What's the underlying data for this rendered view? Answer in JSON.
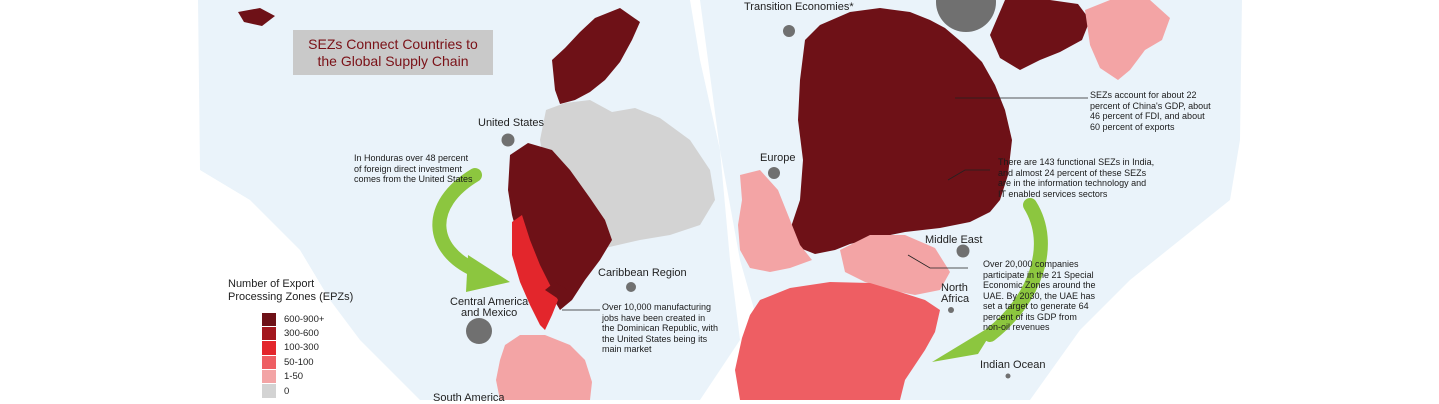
{
  "title": [
    "SEZs Connect Countries to",
    "the Global Supply Chain"
  ],
  "legend": {
    "title": [
      "Number of Export",
      "Processing Zones (EPZs)"
    ],
    "items": [
      {
        "label": "600-900+",
        "color": "#6e1117"
      },
      {
        "label": "300-600",
        "color": "#a3171e"
      },
      {
        "label": "100-300",
        "color": "#e3262c"
      },
      {
        "label": "50-100",
        "color": "#ee5e63"
      },
      {
        "label": "1-50",
        "color": "#f3a4a5"
      },
      {
        "label": "0",
        "color": "#d3d3d3"
      }
    ]
  },
  "regions": {
    "transition": "Transition Economies*",
    "united_states": "United States",
    "europe": "Europe",
    "middle_east": "Middle East",
    "caribbean": "Caribbean Region",
    "central_america": [
      "Central America",
      "and Mexico"
    ],
    "north_africa": [
      "North",
      "Africa"
    ],
    "indian_ocean": "Indian Ocean",
    "south_america": "South America"
  },
  "annotations": {
    "honduras": [
      "In Honduras over 48 percent",
      "of foreign direct investment",
      "comes from the United States"
    ],
    "dominican": [
      "Over 10,000 manufacturing",
      "jobs have been created in",
      "the Dominican Republic, with",
      "the United States being its",
      "main market"
    ],
    "china": [
      "SEZs account for about 22",
      "percent of China's GDP, about",
      "46 percent of FDI, and about",
      "60 percent of exports"
    ],
    "india": [
      "There are 143 functional SEZs in India,",
      "and almost 24 percent of these SEZs",
      "are in the information technology and",
      "IT enabled services sectors"
    ],
    "uae": [
      "Over 20,000 companies",
      "participate in the 21 Special",
      "Economic Zones around the",
      "UAE. By 2030, the UAE has",
      "set a target to generate 64",
      "percent of its GDP from",
      "non-oil revenues"
    ]
  }
}
